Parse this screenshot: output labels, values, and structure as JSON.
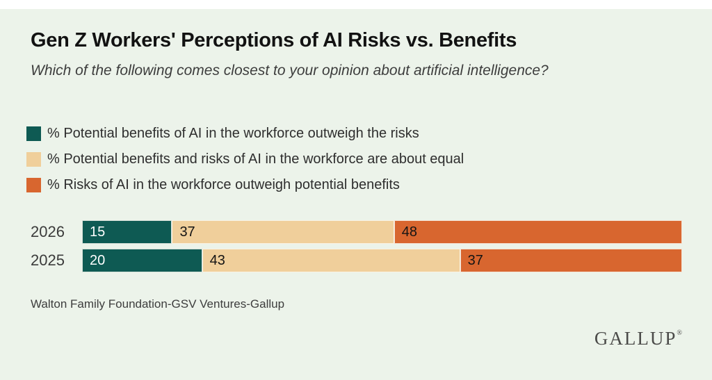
{
  "colors": {
    "background": "#ecf3ea",
    "top_strip": "#ffffff",
    "teal": "#0e5a53",
    "tan": "#f0cf9b",
    "orange": "#d8662f",
    "title_text": "#121212",
    "subtitle_text": "#3d3d3d",
    "value_text_dark": "#141414",
    "value_text_light": "#ffffff"
  },
  "header": {
    "title": "Gen Z Workers' Perceptions of AI Risks vs. Benefits",
    "subtitle": "Which of the following comes closest to your opinion about artificial intelligence?"
  },
  "legend": {
    "items": [
      {
        "label": "% Potential benefits of AI in the workforce outweigh the risks",
        "color": "#0e5a53"
      },
      {
        "label": "% Potential benefits and risks of AI in the workforce are about equal",
        "color": "#f0cf9b"
      },
      {
        "label": "% Risks of AI in the workforce outweigh potential benefits",
        "color": "#d8662f"
      }
    ]
  },
  "chart_data": {
    "type": "bar",
    "orientation": "horizontal",
    "stacked": true,
    "title": "Gen Z Workers' Perceptions of AI Risks vs. Benefits",
    "subtitle": "Which of the following comes closest to your opinion about artificial intelligence?",
    "categories": [
      "2026",
      "2025"
    ],
    "series": [
      {
        "name": "% Potential benefits of AI in the workforce outweigh the risks",
        "color": "#0e5a53",
        "label_color": "#ffffff",
        "values": [
          15,
          20
        ]
      },
      {
        "name": "% Potential benefits and risks of AI in the workforce are about equal",
        "color": "#f0cf9b",
        "label_color": "#141414",
        "values": [
          37,
          43
        ]
      },
      {
        "name": "% Risks of AI in the workforce outweigh potential benefits",
        "color": "#d8662f",
        "label_color": "#141414",
        "values": [
          48,
          37
        ]
      }
    ],
    "xlim": [
      0,
      100
    ],
    "value_labels": true,
    "grid": false,
    "legend_position": "top-left"
  },
  "footer": {
    "source": "Walton Family Foundation-GSV Ventures-Gallup",
    "logo": "GALLUP",
    "logo_registered": "®"
  }
}
